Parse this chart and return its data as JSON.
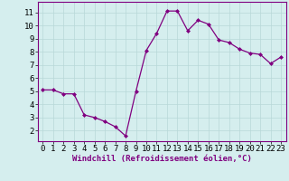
{
  "x": [
    0,
    1,
    2,
    3,
    4,
    5,
    6,
    7,
    8,
    9,
    10,
    11,
    12,
    13,
    14,
    15,
    16,
    17,
    18,
    19,
    20,
    21,
    22,
    23
  ],
  "y": [
    5.1,
    5.1,
    4.8,
    4.8,
    3.2,
    3.0,
    2.7,
    2.3,
    1.6,
    5.0,
    8.1,
    9.4,
    11.1,
    11.1,
    9.6,
    10.4,
    10.1,
    8.9,
    8.7,
    8.2,
    7.9,
    7.8,
    7.1,
    7.6
  ],
  "line_color": "#800080",
  "marker": "D",
  "markersize": 2.0,
  "linewidth": 0.9,
  "background_color": "#d5eeee",
  "grid_color": "#b8d8d8",
  "xlabel": "Windchill (Refroidissement éolien,°C)",
  "xlabel_fontsize": 6.5,
  "tick_fontsize": 6.5,
  "xlim": [
    -0.5,
    23.5
  ],
  "ylim": [
    1.2,
    11.8
  ],
  "yticks": [
    2,
    3,
    4,
    5,
    6,
    7,
    8,
    9,
    10,
    11
  ],
  "xticks": [
    0,
    1,
    2,
    3,
    4,
    5,
    6,
    7,
    8,
    9,
    10,
    11,
    12,
    13,
    14,
    15,
    16,
    17,
    18,
    19,
    20,
    21,
    22,
    23
  ]
}
